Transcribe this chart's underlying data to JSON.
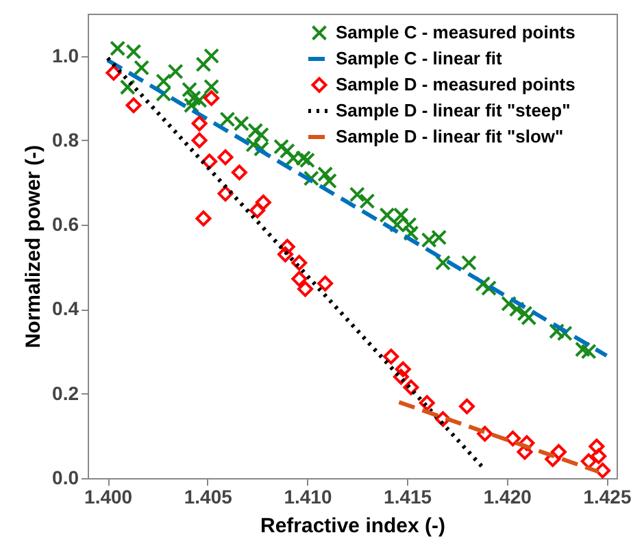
{
  "chart_data": {
    "type": "scatter",
    "xlabel": "Refractive index (-)",
    "ylabel": "Normalized power (-)",
    "xlim": [
      1.399,
      1.4255
    ],
    "xticks": [
      {
        "value": 1.4,
        "label": "1.400"
      },
      1.405,
      {
        "value": 1.41,
        "label": "1.410"
      },
      1.415,
      {
        "value": 1.42,
        "label": "1.420"
      },
      1.425
    ],
    "ylim": [
      0,
      1.1
    ],
    "yticks": [
      {
        "value": 0,
        "label": "0.0"
      },
      0.2,
      0.4,
      0.6,
      0.8,
      {
        "value": 1,
        "label": "1.0"
      }
    ],
    "grid": false,
    "legend": "top right",
    "series": [
      {
        "name": "Sample C - measured points",
        "type": "scatter",
        "marker": "cross",
        "color": "#1a8a1a",
        "x": [
          1.4005,
          1.4013,
          1.4017,
          1.401,
          1.4028,
          1.4034,
          1.4028,
          1.4041,
          1.4048,
          1.4052,
          1.4043,
          1.4052,
          1.4042,
          1.4046,
          1.406,
          1.4067,
          1.4074,
          1.4077,
          1.4073,
          1.4077,
          1.4087,
          1.409,
          1.4093,
          1.4098,
          1.41,
          1.4102,
          1.4109,
          1.4111,
          1.4125,
          1.413,
          1.414,
          1.4147,
          1.4145,
          1.4151,
          1.4152,
          1.4161,
          1.4166,
          1.4168,
          1.4181,
          1.4188,
          1.4191,
          1.4201,
          1.4205,
          1.4209,
          1.4211,
          1.4225,
          1.4229,
          1.4238,
          1.4241
        ],
        "values": [
          1.018,
          1.01,
          0.972,
          0.926,
          0.94,
          0.963,
          0.91,
          0.92,
          0.98,
          1.0,
          0.9,
          0.927,
          0.883,
          0.895,
          0.85,
          0.84,
          0.823,
          0.813,
          0.79,
          0.78,
          0.785,
          0.775,
          0.758,
          0.758,
          0.753,
          0.71,
          0.72,
          0.704,
          0.672,
          0.656,
          0.623,
          0.623,
          0.6,
          0.6,
          0.58,
          0.564,
          0.57,
          0.51,
          0.51,
          0.46,
          0.45,
          0.413,
          0.4,
          0.39,
          0.38,
          0.348,
          0.343,
          0.305,
          0.3
        ]
      },
      {
        "name": "Sample C - linear fit",
        "type": "line",
        "line_style": "dashed",
        "color": "#0072bd",
        "x": [
          1.4,
          1.425
        ],
        "values": [
          0.99,
          0.29
        ]
      },
      {
        "name": "Sample D - measured points",
        "type": "scatter",
        "marker": "diamond",
        "color": "#ff0000",
        "x": [
          1.4003,
          1.4013,
          1.4052,
          1.4046,
          1.4046,
          1.4051,
          1.4059,
          1.4066,
          1.4059,
          1.4048,
          1.4078,
          1.4075,
          1.409,
          1.4089,
          1.4096,
          1.4096,
          1.4099,
          1.4109,
          1.4142,
          1.4148,
          1.4147,
          1.4152,
          1.416,
          1.4168,
          1.418,
          1.4189,
          1.4203,
          1.421,
          1.4209,
          1.4226,
          1.4223,
          1.4245,
          1.4241,
          1.4248,
          1.4246
        ],
        "values": [
          0.96,
          0.883,
          0.9,
          0.84,
          0.8,
          0.75,
          0.76,
          0.724,
          0.674,
          0.615,
          0.653,
          0.634,
          0.548,
          0.53,
          0.51,
          0.472,
          0.448,
          0.461,
          0.288,
          0.258,
          0.24,
          0.215,
          0.178,
          0.14,
          0.17,
          0.105,
          0.094,
          0.083,
          0.062,
          0.062,
          0.045,
          0.075,
          0.04,
          0.018,
          0.052
        ]
      },
      {
        "name": "Sample D - linear fit \"steep\"",
        "type": "line",
        "line_style": "dotted",
        "color": "#000000",
        "x": [
          1.4,
          1.4189
        ],
        "values": [
          0.995,
          0.02
        ]
      },
      {
        "name": "Sample D - linear fit \"slow\"",
        "type": "line",
        "line_style": "dashed",
        "color": "#d95319",
        "x": [
          1.4146,
          1.4246
        ],
        "values": [
          0.18,
          0.015
        ]
      }
    ]
  }
}
